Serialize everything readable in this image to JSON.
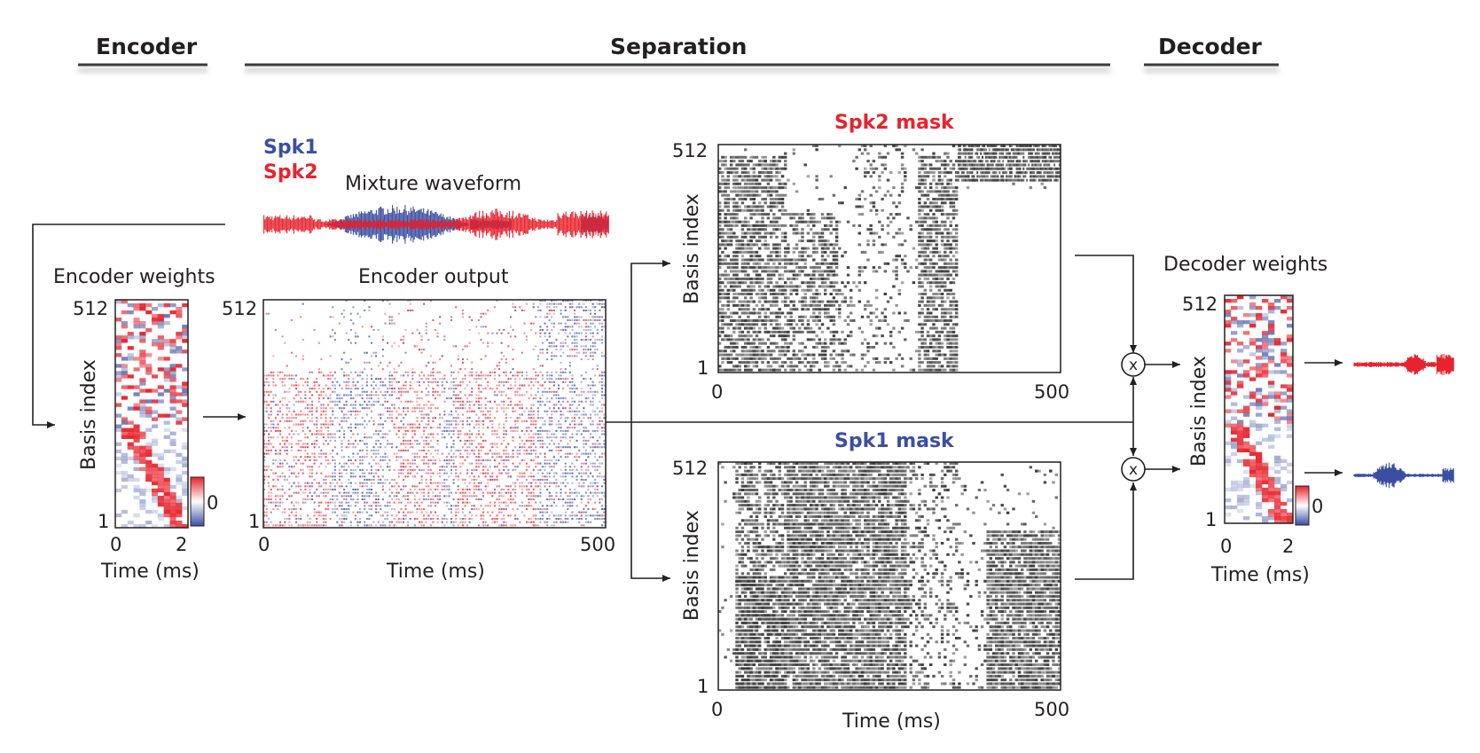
{
  "sections": {
    "encoder": "Encoder",
    "separation": "Separation",
    "decoder": "Decoder"
  },
  "legend": {
    "spk1": "Spk1",
    "spk2": "Spk2"
  },
  "mixture": {
    "title": "Mixture waveform"
  },
  "encoder_weights": {
    "title": "Encoder weights",
    "ylabel": "Basis index",
    "y_top": "512",
    "y_bottom": "1",
    "x_ticks": [
      "0",
      "2"
    ],
    "xlabel": "Time (ms)",
    "colorbar_tick": "0"
  },
  "encoder_output": {
    "title": "Encoder output",
    "y_top": "512",
    "y_bottom": "1",
    "x_ticks": [
      "0",
      "500"
    ],
    "xlabel": "Time (ms)"
  },
  "spk2_mask": {
    "title": "Spk2 mask",
    "ylabel": "Basis index",
    "y_top": "512",
    "y_bottom": "1",
    "x_ticks": [
      "0",
      "500"
    ]
  },
  "spk1_mask": {
    "title": "Spk1 mask",
    "ylabel": "Basis index",
    "y_top": "512",
    "y_bottom": "1",
    "x_ticks": [
      "0",
      "500"
    ],
    "xlabel": "Time (ms)"
  },
  "multiply_symbol": "x",
  "decoder_weights": {
    "title": "Decoder weights",
    "ylabel": "Basis index",
    "y_top": "512",
    "y_bottom": "1",
    "x_ticks": [
      "0",
      "2"
    ],
    "xlabel": "Time (ms)",
    "colorbar_tick": "0"
  },
  "colors": {
    "spk1": "#3a4fa3",
    "spk2": "#e8232d",
    "mask": "#3d3d3d",
    "line": "#231f20"
  }
}
